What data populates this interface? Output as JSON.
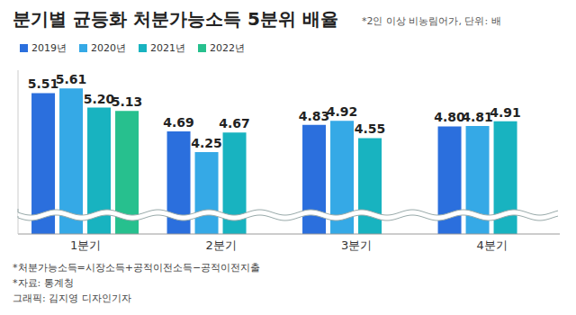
{
  "chart_data": {
    "type": "bar",
    "title": "분기별 균등화 처분가능소득 5분위 배율",
    "subtitle": "*2인 이상 비농림어가, 단위: 배",
    "categories": [
      "1분기",
      "2분기",
      "3분기",
      "4분기"
    ],
    "series": [
      {
        "name": "2019년",
        "color": "#2b6fdd",
        "values": [
          5.51,
          4.69,
          4.83,
          4.8
        ],
        "value_labels": [
          "5.51",
          "4.69",
          "4.83",
          "4.80"
        ]
      },
      {
        "name": "2020년",
        "color": "#35a9e6",
        "values": [
          5.61,
          4.25,
          4.92,
          4.81
        ],
        "value_labels": [
          "5.61",
          "4.25",
          "4.92",
          "4.81"
        ]
      },
      {
        "name": "2021년",
        "color": "#18b3c0",
        "values": [
          5.2,
          4.67,
          4.55,
          4.91
        ],
        "value_labels": [
          "5.20",
          "4.67",
          "4.55",
          "4.91"
        ]
      },
      {
        "name": "2022년",
        "color": "#27c08e",
        "values": [
          5.13,
          null,
          null,
          null
        ],
        "value_labels": [
          "5.13",
          null,
          null,
          null
        ]
      }
    ],
    "ylim": [
      2.5,
      6
    ],
    "tick_labels": "x",
    "data_labels": true,
    "legend": "top-left",
    "annotations": [
      "*처분가능소득=시장소득+공적이전소득−공적이전지출",
      "*자료: 통계청",
      "그래픽: 김지영 디자인기자"
    ]
  }
}
